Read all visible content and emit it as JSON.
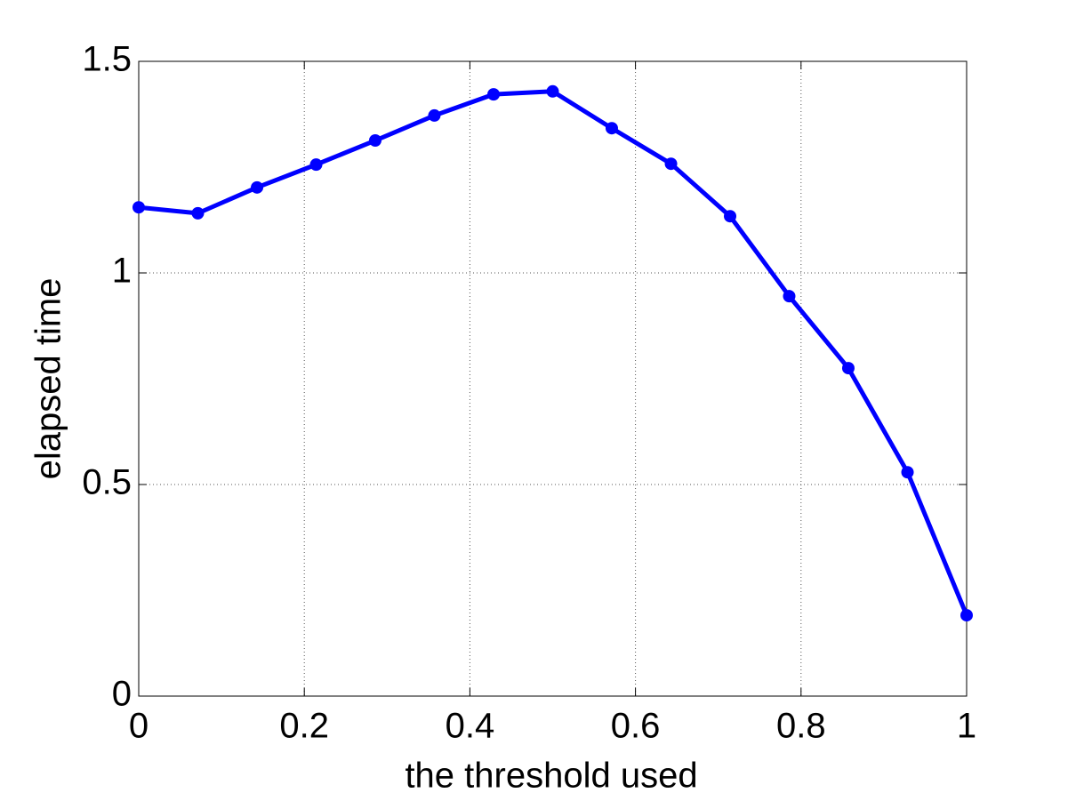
{
  "chart_data": {
    "type": "line",
    "xlabel": "the threshold used",
    "ylabel": "elapsed time",
    "x": [
      0,
      0.0714,
      0.1429,
      0.2143,
      0.2857,
      0.3571,
      0.4286,
      0.5,
      0.5714,
      0.6429,
      0.7143,
      0.7857,
      0.8571,
      0.9286,
      1
    ],
    "values": [
      1.155,
      1.141,
      1.202,
      1.256,
      1.313,
      1.372,
      1.422,
      1.429,
      1.342,
      1.258,
      1.134,
      0.945,
      0.775,
      0.529,
      0.191
    ],
    "color": "#0000ff",
    "xlim": [
      0,
      1
    ],
    "xticks": [
      0,
      0.2,
      0.4,
      0.6,
      0.8,
      1
    ],
    "ylim": [
      0,
      1.5
    ],
    "yticks": [
      0,
      0.5,
      1,
      1.5
    ],
    "grid": true
  }
}
